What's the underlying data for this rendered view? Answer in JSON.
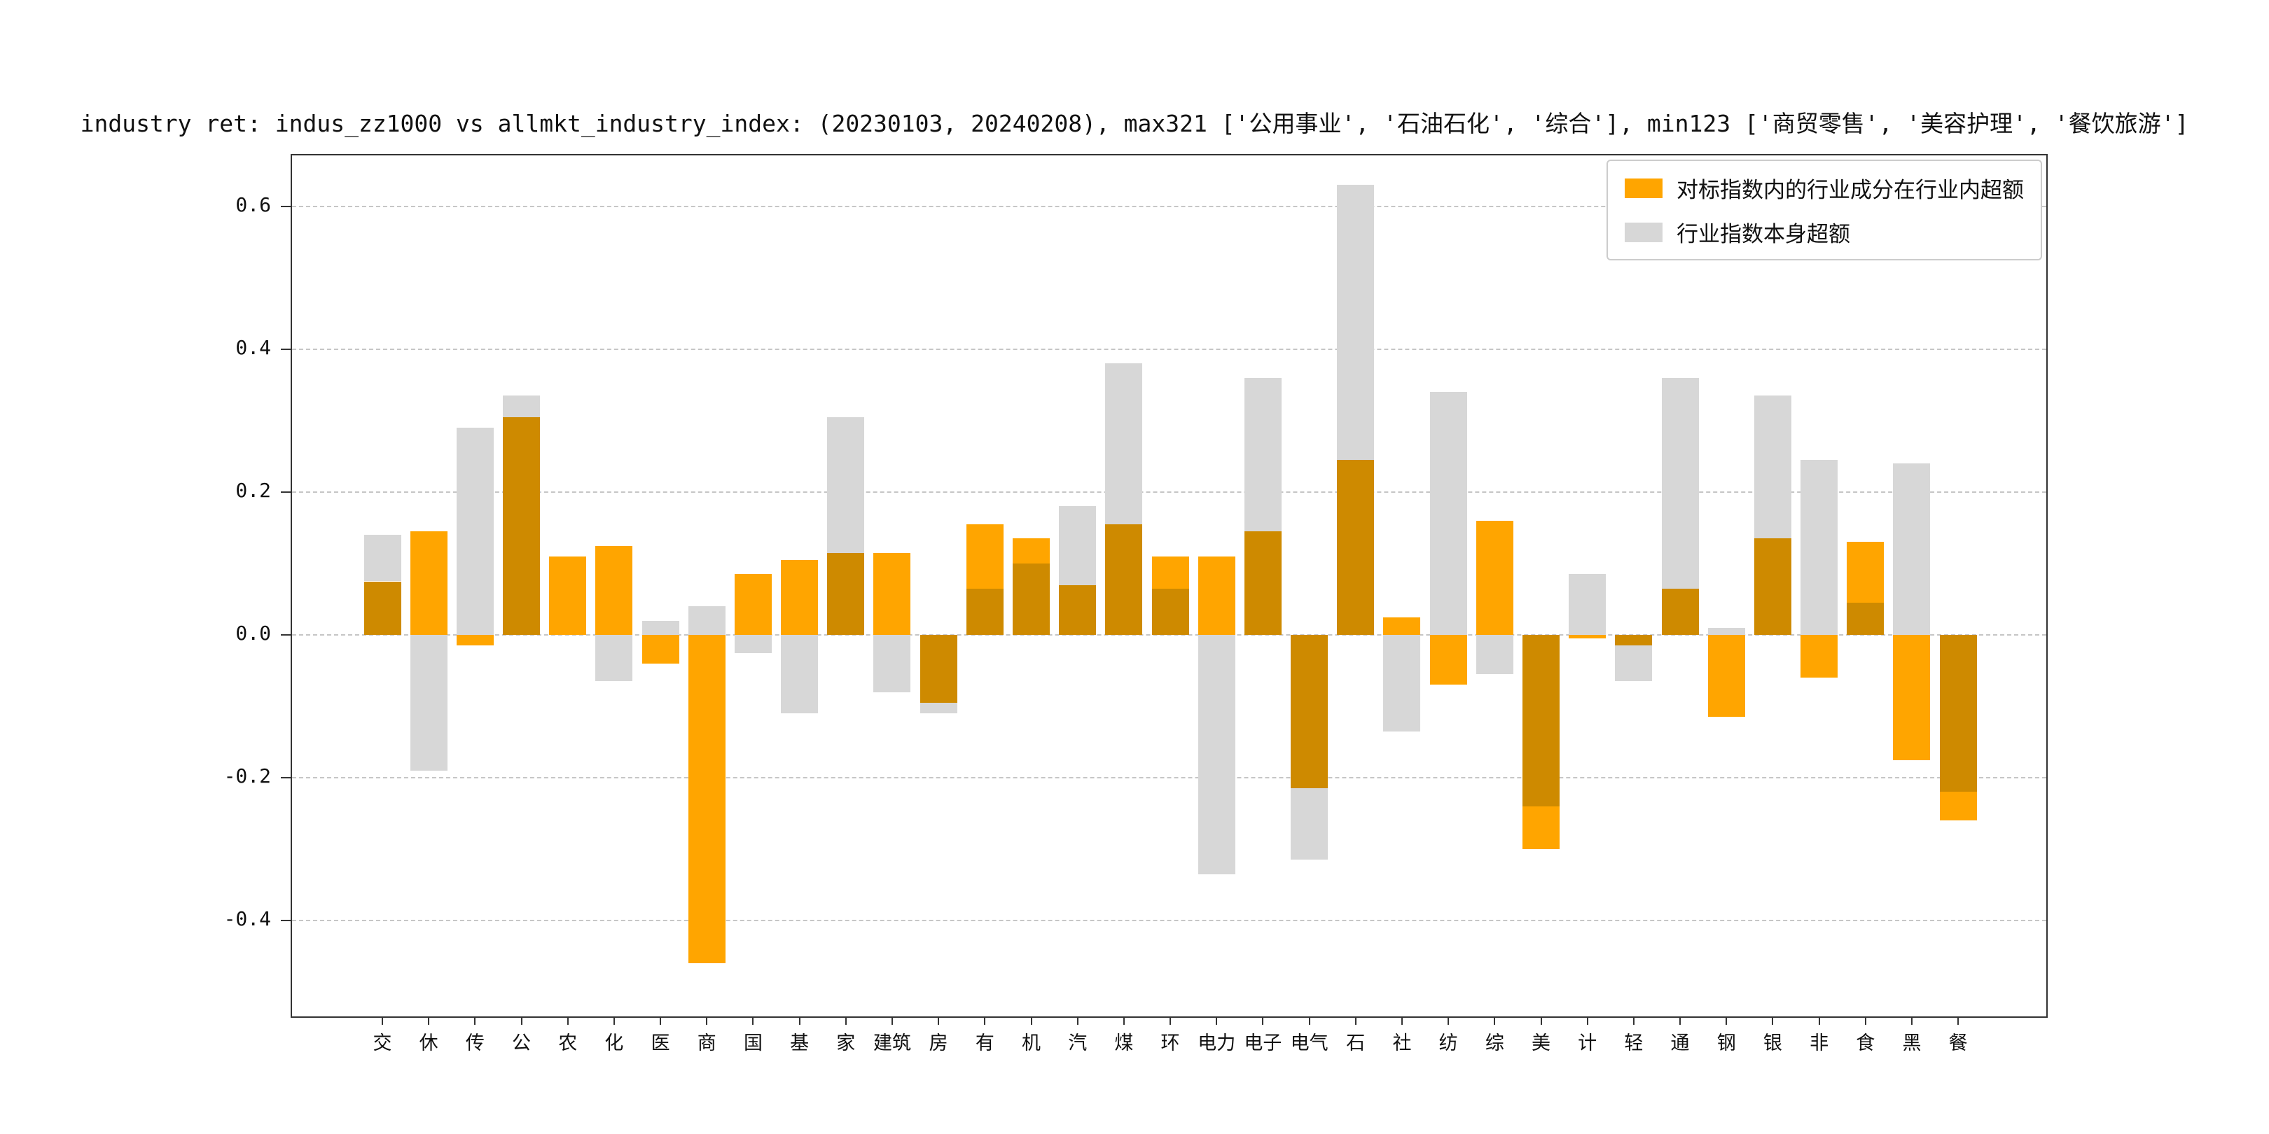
{
  "title": "industry ret: indus_zz1000 vs allmkt_industry_index: (20230103, 20240208), max321 ['公用事业', '石油石化', '综合'], min123 ['商贸零售', '美容护理', '餐饮旅游']",
  "legend": {
    "items": [
      {
        "label": "对标指数内的行业成分在行业内超额",
        "color": "#FFA500"
      },
      {
        "label": "行业指数本身超额",
        "color": "#D7D7D7"
      }
    ]
  },
  "colors": {
    "orange": "#FFA500",
    "gray": "#D7D7D7",
    "overlap": "#CE8A00",
    "grid": "#C6C6C6"
  },
  "chart_data": {
    "type": "bar",
    "overlaid": true,
    "title": "industry ret: indus_zz1000 vs allmkt_industry_index: (20230103, 20240208), max321 ['公用事业', '石油石化', '综合'], min123 ['商贸零售', '美容护理', '餐饮旅游']",
    "xlabel": "",
    "ylabel": "",
    "grid": "horizontal dashed",
    "legend_position": "upper right",
    "yticks": [
      0.6,
      0.4,
      0.2,
      0.0,
      -0.2,
      -0.4
    ],
    "ylim": [
      -0.53,
      0.67
    ],
    "categories": [
      "交",
      "休",
      "传",
      "公",
      "农",
      "化",
      "医",
      "商",
      "国",
      "基",
      "家",
      "建筑",
      "房",
      "有",
      "机",
      "汽",
      "煤",
      "环",
      "电力",
      "电子",
      "电气",
      "石",
      "社",
      "纺",
      "综",
      "美",
      "计",
      "轻",
      "通",
      "钢",
      "银",
      "非",
      "食",
      "黑",
      "餐"
    ],
    "series": [
      {
        "name": "对标指数内的行业成分在行业内超额",
        "color": "#FFA500",
        "values": [
          0.075,
          0.145,
          -0.015,
          0.305,
          0.11,
          0.125,
          -0.04,
          -0.46,
          0.085,
          0.105,
          0.115,
          0.115,
          -0.095,
          0.155,
          0.135,
          0.07,
          0.155,
          0.11,
          0.11,
          0.145,
          -0.215,
          0.245,
          0.025,
          -0.07,
          0.16,
          -0.3,
          -0.005,
          -0.015,
          0.065,
          -0.115,
          0.135,
          -0.06,
          0.13,
          -0.175,
          -0.26
        ]
      },
      {
        "name": "行业指数本身超额",
        "color": "#D7D7D7",
        "values": [
          0.14,
          -0.19,
          0.29,
          0.335,
          0.0,
          -0.065,
          0.02,
          0.04,
          -0.025,
          -0.11,
          0.305,
          -0.08,
          -0.11,
          0.065,
          0.1,
          0.18,
          0.38,
          0.065,
          -0.335,
          0.36,
          -0.315,
          0.63,
          -0.135,
          0.34,
          -0.055,
          -0.24,
          0.085,
          -0.065,
          0.36,
          0.01,
          0.335,
          0.245,
          0.045,
          0.24,
          -0.22
        ]
      }
    ]
  }
}
